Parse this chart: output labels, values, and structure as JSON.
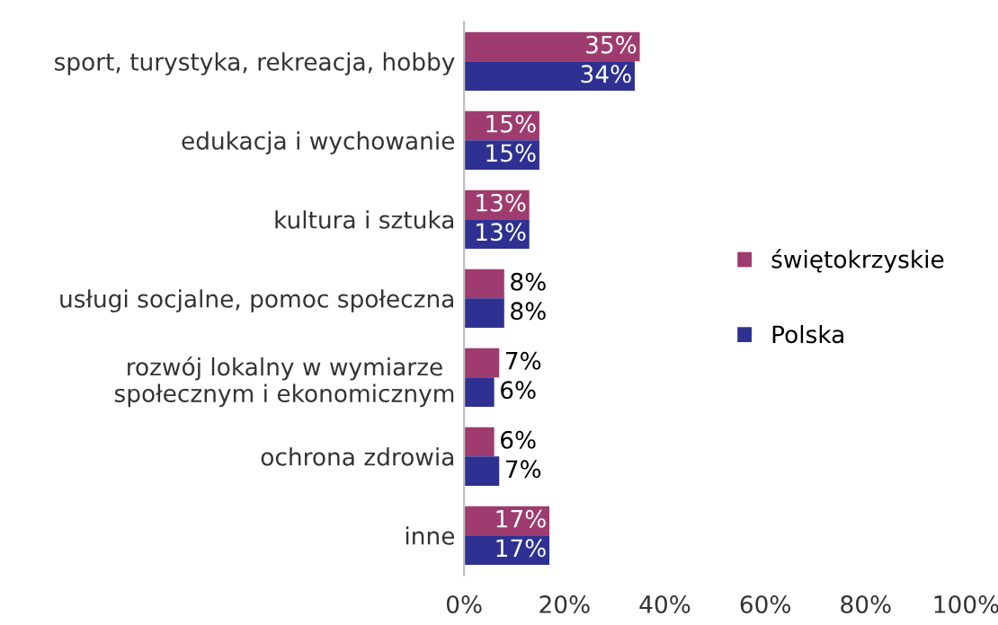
{
  "chart_data": {
    "type": "bar",
    "orientation": "horizontal",
    "categories": [
      "sport, turystyka, rekreacja, hobby",
      "edukacja i wychowanie",
      "kultura i sztuka",
      "usługi socjalne, pomoc społeczna",
      "rozwój lokalny w wymiarze\nspołecznym i ekonomicznym",
      "ochrona zdrowia",
      "inne"
    ],
    "series": [
      {
        "name": "świętokrzyskie",
        "color": "#9e3b6f",
        "values": [
          35,
          15,
          13,
          8,
          7,
          6,
          17
        ],
        "value_labels": [
          "35%",
          "15%",
          "13%",
          "8%",
          "7%",
          "6%",
          "17%"
        ]
      },
      {
        "name": "Polska",
        "color": "#2e3191",
        "values": [
          34,
          15,
          13,
          8,
          6,
          7,
          17
        ],
        "value_labels": [
          "34%",
          "15%",
          "13%",
          "8%",
          "6%",
          "7%",
          "17%"
        ]
      }
    ],
    "xlim": [
      0,
      100
    ],
    "xticks": [
      {
        "value": 0,
        "label": "0%"
      },
      {
        "value": 20,
        "label": "20%"
      },
      {
        "value": 40,
        "label": "40%"
      },
      {
        "value": 60,
        "label": "60%"
      },
      {
        "value": 80,
        "label": "80%"
      },
      {
        "value": 100,
        "label": "100%"
      }
    ],
    "grid": false,
    "legend": "right"
  }
}
